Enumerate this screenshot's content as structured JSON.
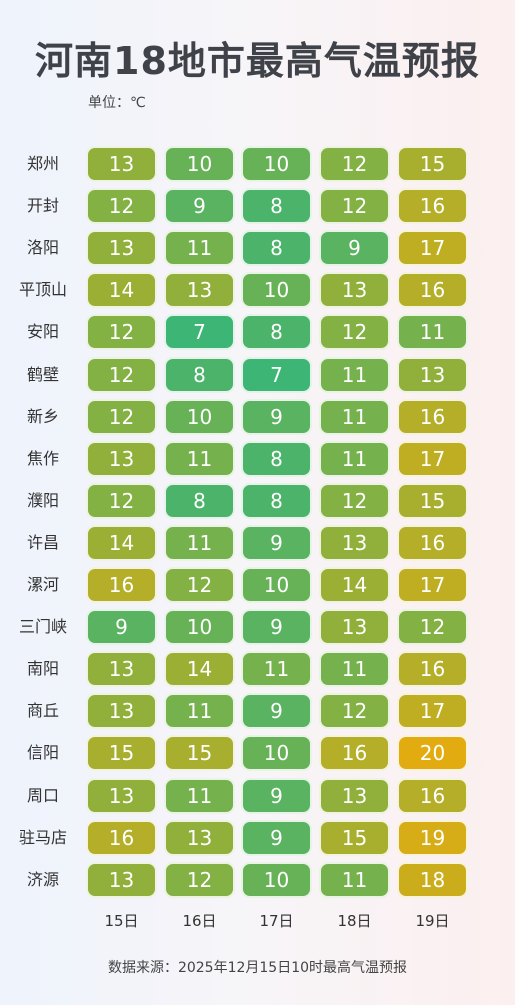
{
  "title": "河南18地市最高气温预报",
  "unit_label": "单位：℃",
  "source": "数据来源：2025年12月15日10时最高气温预报",
  "chart_data": {
    "type": "heatmap",
    "title": "河南18地市最高气温预报",
    "xlabel": "",
    "ylabel": "",
    "x_categories": [
      "15日",
      "16日",
      "17日",
      "18日",
      "19日"
    ],
    "y_categories": [
      "郑州",
      "开封",
      "洛阳",
      "平顶山",
      "安阳",
      "鹤壁",
      "新乡",
      "焦作",
      "濮阳",
      "许昌",
      "漯河",
      "三门峡",
      "南阳",
      "商丘",
      "信阳",
      "周口",
      "驻马店",
      "济源"
    ],
    "values": [
      [
        13,
        10,
        10,
        12,
        15
      ],
      [
        12,
        9,
        8,
        12,
        16
      ],
      [
        13,
        11,
        8,
        9,
        17
      ],
      [
        14,
        13,
        10,
        13,
        16
      ],
      [
        12,
        7,
        8,
        12,
        11
      ],
      [
        12,
        8,
        7,
        11,
        13
      ],
      [
        12,
        10,
        9,
        11,
        16
      ],
      [
        13,
        11,
        8,
        11,
        17
      ],
      [
        12,
        8,
        8,
        12,
        15
      ],
      [
        14,
        11,
        9,
        13,
        16
      ],
      [
        16,
        12,
        10,
        14,
        17
      ],
      [
        9,
        10,
        9,
        13,
        12
      ],
      [
        13,
        14,
        11,
        11,
        16
      ],
      [
        13,
        11,
        9,
        12,
        17
      ],
      [
        15,
        15,
        10,
        16,
        20
      ],
      [
        13,
        11,
        9,
        13,
        16
      ],
      [
        16,
        13,
        9,
        15,
        19
      ],
      [
        13,
        12,
        10,
        11,
        18
      ]
    ],
    "value_range": [
      7,
      20
    ],
    "colors": {
      "low": "#3db574",
      "mid": "#8fb03c",
      "high": "#e2ac10"
    }
  }
}
